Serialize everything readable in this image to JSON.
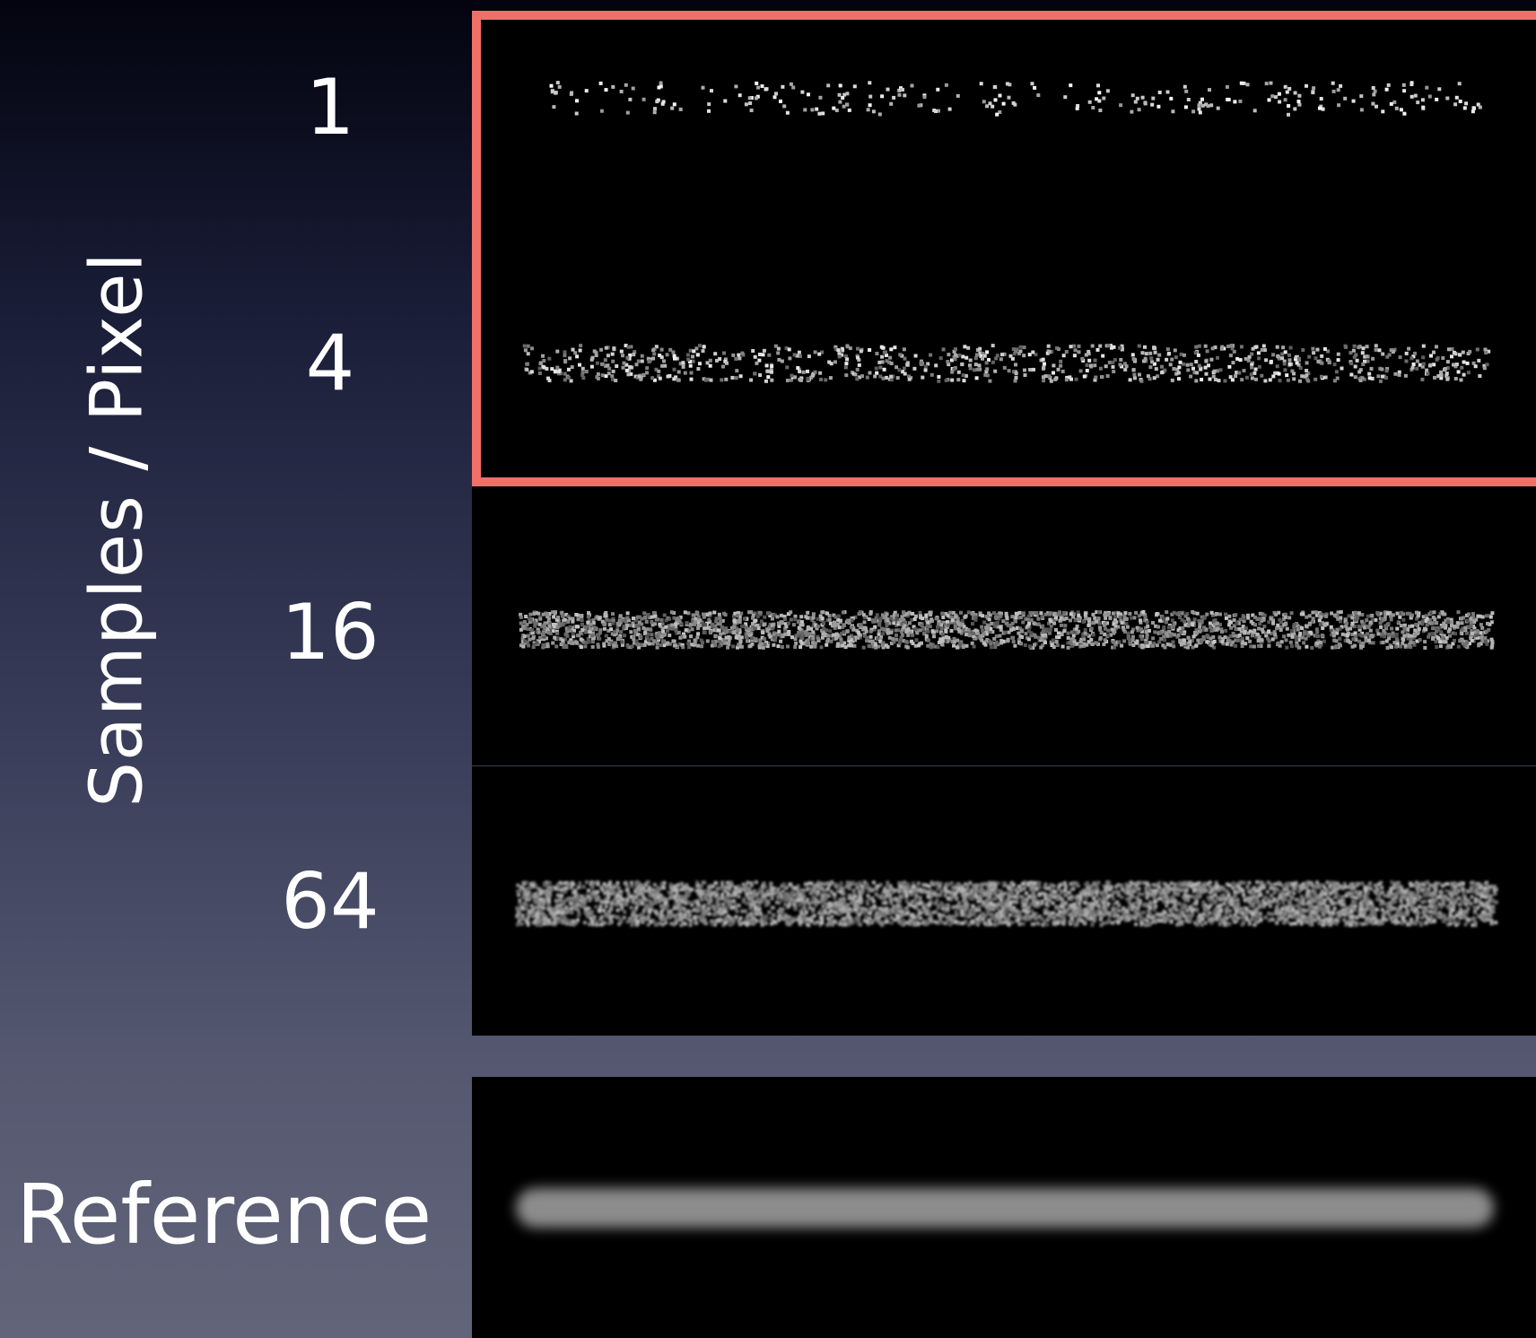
{
  "axis": {
    "label": "Samples / Pixel"
  },
  "rows": [
    {
      "label": "1"
    },
    {
      "label": "4"
    },
    {
      "label": "16"
    },
    {
      "label": "64"
    }
  ],
  "reference": {
    "label": "Reference"
  },
  "colors": {
    "highlight": "#f07068",
    "panel": "#000000"
  }
}
